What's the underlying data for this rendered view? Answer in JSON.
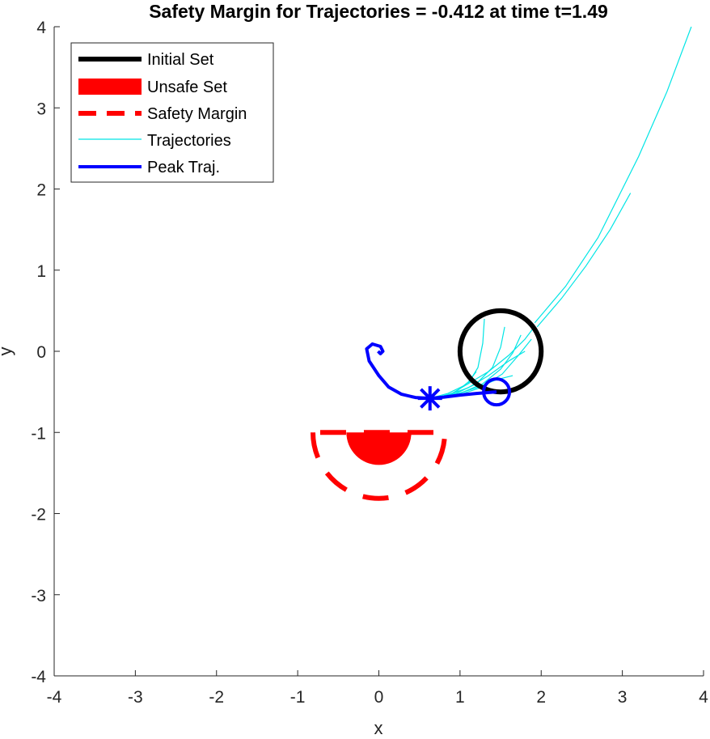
{
  "chart_data": {
    "type": "line",
    "title": "Safety Margin for Trajectories = -0.412 at time t=1.49",
    "xlabel": "x",
    "ylabel": "y",
    "xlim": [
      -4,
      4
    ],
    "ylim": [
      -4,
      4
    ],
    "xticks": [
      "-4",
      "-3",
      "-2",
      "-1",
      "0",
      "1",
      "2",
      "3",
      "4"
    ],
    "yticks": [
      "-4",
      "-3",
      "-2",
      "-1",
      "0",
      "1",
      "2",
      "3",
      "4"
    ],
    "grid": false,
    "legend_position": "top-left",
    "colors": {
      "initial_set": "#000000",
      "unsafe_set": "#ff0000",
      "safety_margin": "#ff0000",
      "trajectories": "#00e5e5",
      "peak_traj": "#0000ff"
    },
    "legend": [
      "Initial Set",
      "Unsafe Set",
      "Safety Margin",
      "Trajectories",
      "Peak Traj."
    ],
    "initial_set": {
      "center": [
        1.5,
        0
      ],
      "radius": 0.5
    },
    "unsafe_set": {
      "center": [
        0,
        -1
      ],
      "radius": 0.4,
      "shape": "lower half-disk"
    },
    "safety_margin": {
      "center": [
        0,
        -1
      ],
      "radius": 0.812,
      "shape": "lower half-disk boundary"
    },
    "peak_traj": {
      "start": [
        1.45,
        -0.5
      ],
      "closest_point": [
        0.63,
        -0.58
      ],
      "points": [
        [
          1.45,
          -0.5
        ],
        [
          1.2,
          -0.52
        ],
        [
          1.0,
          -0.54
        ],
        [
          0.8,
          -0.565
        ],
        [
          0.63,
          -0.58
        ],
        [
          0.45,
          -0.57
        ],
        [
          0.28,
          -0.53
        ],
        [
          0.12,
          -0.44
        ],
        [
          0.0,
          -0.3
        ],
        [
          -0.12,
          -0.12
        ],
        [
          -0.15,
          0.03
        ],
        [
          -0.08,
          0.09
        ],
        [
          0.02,
          0.06
        ],
        [
          0.05,
          0.0
        ],
        [
          0.02,
          -0.03
        ],
        [
          -0.01,
          0.0
        ]
      ]
    },
    "trajectories": [
      {
        "points": [
          [
            1.92,
            0.35
          ],
          [
            2.3,
            0.8
          ],
          [
            2.7,
            1.4
          ],
          [
            3.2,
            2.4
          ],
          [
            3.55,
            3.2
          ],
          [
            3.85,
            4.0
          ]
        ]
      },
      {
        "points": [
          [
            1.95,
            0.3
          ],
          [
            2.25,
            0.65
          ],
          [
            2.55,
            1.05
          ],
          [
            2.85,
            1.5
          ],
          [
            3.1,
            1.95
          ]
        ]
      },
      {
        "points": [
          [
            1.9,
            0.28
          ],
          [
            1.8,
            0.15
          ],
          [
            1.6,
            -0.05
          ],
          [
            1.35,
            -0.25
          ],
          [
            1.1,
            -0.4
          ],
          [
            0.85,
            -0.52
          ],
          [
            0.63,
            -0.58
          ]
        ]
      },
      {
        "points": [
          [
            1.8,
            0.0
          ],
          [
            1.6,
            -0.12
          ],
          [
            1.35,
            -0.3
          ],
          [
            1.1,
            -0.45
          ],
          [
            0.85,
            -0.54
          ],
          [
            0.65,
            -0.58
          ]
        ]
      },
      {
        "points": [
          [
            1.65,
            -0.3
          ],
          [
            1.45,
            -0.35
          ],
          [
            1.2,
            -0.45
          ],
          [
            0.95,
            -0.53
          ],
          [
            0.7,
            -0.58
          ]
        ]
      },
      {
        "points": [
          [
            1.3,
            0.4
          ],
          [
            1.28,
            0.1
          ],
          [
            1.22,
            -0.2
          ],
          [
            1.1,
            -0.4
          ],
          [
            0.9,
            -0.52
          ],
          [
            0.68,
            -0.58
          ]
        ]
      },
      {
        "points": [
          [
            1.55,
            0.3
          ],
          [
            1.5,
            0.05
          ],
          [
            1.4,
            -0.2
          ],
          [
            1.2,
            -0.4
          ],
          [
            0.95,
            -0.52
          ],
          [
            0.7,
            -0.58
          ]
        ]
      },
      {
        "points": [
          [
            1.75,
            0.2
          ],
          [
            1.65,
            -0.02
          ],
          [
            1.5,
            -0.22
          ],
          [
            1.28,
            -0.4
          ],
          [
            1.0,
            -0.52
          ],
          [
            0.72,
            -0.58
          ]
        ]
      },
      {
        "points": [
          [
            1.88,
            0.15
          ],
          [
            1.72,
            -0.05
          ],
          [
            1.52,
            -0.28
          ],
          [
            1.25,
            -0.45
          ],
          [
            0.95,
            -0.55
          ]
        ]
      },
      {
        "points": [
          [
            1.2,
            -0.25
          ],
          [
            1.1,
            -0.38
          ],
          [
            0.95,
            -0.5
          ],
          [
            0.75,
            -0.57
          ]
        ]
      }
    ]
  }
}
